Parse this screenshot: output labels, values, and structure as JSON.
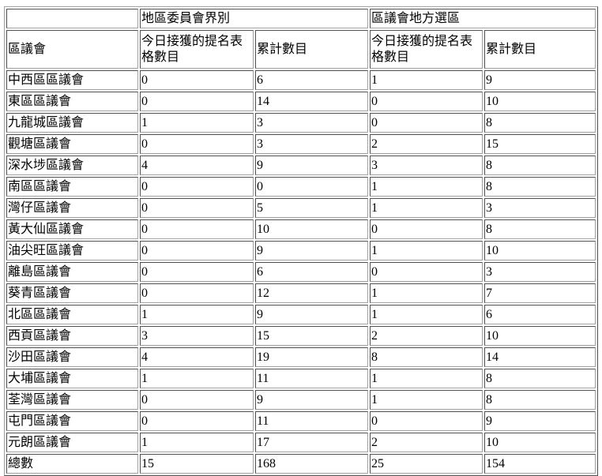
{
  "table": {
    "group_headers": [
      "",
      "地區委員會界別",
      "區議會地方選區"
    ],
    "column_headers": [
      "區議會",
      "今日接獲的提名表格數目",
      "累計數目",
      "今日接獲的提名表格數目",
      "累計數目"
    ],
    "rows": [
      [
        "中西區區議會",
        "0",
        "6",
        "1",
        "9"
      ],
      [
        "東區區議會",
        "0",
        "14",
        "0",
        "10"
      ],
      [
        "九龍城區議會",
        "1",
        "3",
        "0",
        "8"
      ],
      [
        "觀塘區議會",
        "0",
        "3",
        "2",
        "15"
      ],
      [
        "深水埗區議會",
        "4",
        "9",
        "3",
        "8"
      ],
      [
        "南區區議會",
        "0",
        "0",
        "1",
        "8"
      ],
      [
        "灣仔區議會",
        "0",
        "5",
        "1",
        "3"
      ],
      [
        "黃大仙區議會",
        "0",
        "10",
        "0",
        "8"
      ],
      [
        "油尖旺區議會",
        "0",
        "9",
        "1",
        "10"
      ],
      [
        "離島區議會",
        "0",
        "6",
        "0",
        "3"
      ],
      [
        "葵青區議會",
        "0",
        "12",
        "1",
        "7"
      ],
      [
        "北區區議會",
        "1",
        "9",
        "1",
        "6"
      ],
      [
        "西貢區議會",
        "3",
        "15",
        "2",
        "10"
      ],
      [
        "沙田區議會",
        "4",
        "19",
        "8",
        "14"
      ],
      [
        "大埔區議會",
        "1",
        "11",
        "1",
        "8"
      ],
      [
        "荃灣區議會",
        "0",
        "9",
        "1",
        "8"
      ],
      [
        "屯門區議會",
        "0",
        "11",
        "0",
        "9"
      ],
      [
        "元朗區議會",
        "1",
        "17",
        "2",
        "10"
      ]
    ],
    "total_row": [
      "總數",
      "15",
      "168",
      "25",
      "154"
    ]
  }
}
